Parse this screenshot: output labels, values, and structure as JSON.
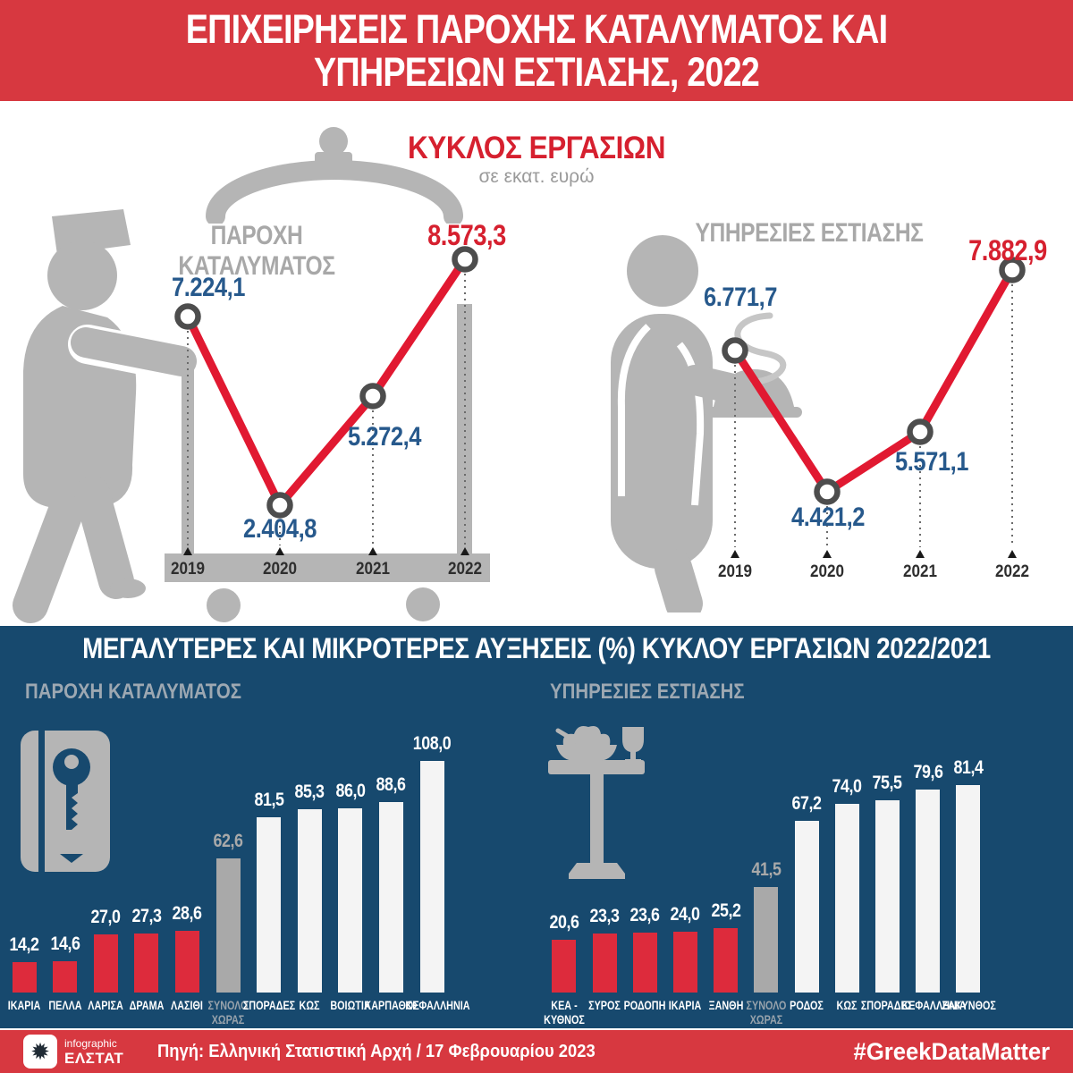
{
  "header": {
    "title_line1": "ΕΠΙΧΕΙΡΗΣΕΙΣ ΠΑΡΟΧΗΣ ΚΑΤΑΛΥΜΑΤΟΣ ΚΑΙ",
    "title_line2": "ΥΠΗΡΕΣΙΩΝ ΕΣΤΙΑΣΗΣ, 2022"
  },
  "turnover": {
    "title": "ΚΥΚΛΟΣ ΕΡΓΑΣΙΩΝ",
    "subtitle": "σε εκατ. ευρώ"
  },
  "increases": {
    "title": "ΜΕΓΑΛΥΤΕΡΕΣ ΚΑΙ ΜΙΚΡΟΤΕΡΕΣ ΑΥΞΗΣΕΙΣ (%) ΚΥΚΛΟΥ ΕΡΓΑΣΙΩΝ 2022/2021"
  },
  "footer": {
    "logo_top": "infographic",
    "logo_name": "ΕΛΣΤΑΤ",
    "source": "Πηγή: Ελληνική Στατιστική Αρχή  / 17 Φεβρουαρίου 2023",
    "hashtag": "#GreekDataMatter"
  },
  "icons": {
    "elstat_star_glyph": "✹"
  },
  "colors": {
    "banner_red": "#d73840",
    "chart_red": "#e11931",
    "bar_red": "#dd2b3c",
    "navy": "#17496e",
    "silhouette_gray": "#b5b5b5",
    "value_blue": "#27598c",
    "heading_gray": "#a8a8a8",
    "bar_white": "#f4f4f4",
    "bar_gray": "#a9a9a9"
  },
  "chart_data": [
    {
      "type": "line",
      "title": "ΠΑΡΟΧΗ ΚΑΤΑΛΥΜΑΤΟΣ",
      "unit": "σε εκατ. ευρώ",
      "x": [
        "2019",
        "2020",
        "2021",
        "2022"
      ],
      "values": [
        7224.1,
        2404.8,
        5272.4,
        8573.3
      ],
      "value_labels": [
        "7.224,1",
        "2.404,8",
        "5.272,4",
        "8.573,3"
      ],
      "highlight_index": 3,
      "grid": false,
      "legend": false
    },
    {
      "type": "line",
      "title": "ΥΠΗΡΕΣΙΕΣ ΕΣΤΙΑΣΗΣ",
      "unit": "σε εκατ. ευρώ",
      "x": [
        "2019",
        "2020",
        "2021",
        "2022"
      ],
      "values": [
        6771.7,
        4421.2,
        5571.1,
        7882.9
      ],
      "value_labels": [
        "6.771,7",
        "4.421,2",
        "5.571,1",
        "7.882,9"
      ],
      "highlight_index": 3,
      "grid": false,
      "legend": false
    },
    {
      "type": "bar",
      "title": "ΠΑΡΟΧΗ ΚΑΤΑΛΥΜΑΤΟΣ",
      "unit": "%",
      "categories": [
        "ΙΚΑΡΙΑ",
        "ΠΕΛΛΑ",
        "ΛΑΡΙΣΑ",
        "ΔΡΑΜΑ",
        "ΛΑΣΙΘΙ",
        "ΣΥΝΟΛΟ ΧΩΡΑΣ",
        "ΣΠΟΡΑΔΕΣ",
        "ΚΩΣ",
        "ΒΟΙΩΤΙΑ",
        "ΚΑΡΠΑΘΟΣ",
        "ΚΕΦΑΛΛΗΝΙΑ"
      ],
      "display_categories": [
        "ΙΚΑΡΙΑ",
        "ΠΕΛΛΑ",
        "ΛΑΡΙΣΑ",
        "ΔΡΑΜΑ",
        "ΛΑΣΙΘΙ",
        "ΣΥΝΟΛΟ\nΧΩΡΑΣ",
        "ΣΠΟΡΑΔΕΣ",
        "ΚΩΣ",
        "ΒΟΙΩΤΙΑ",
        "ΚΑΡΠΑΘΟΣ",
        "ΚΕΦΑΛΛΗΝΙΑ"
      ],
      "values": [
        14.2,
        14.6,
        27.0,
        27.3,
        28.6,
        62.6,
        81.5,
        85.3,
        86.0,
        88.6,
        108.0
      ],
      "value_labels": [
        "14,2",
        "14,6",
        "27,0",
        "27,3",
        "28,6",
        "62,6",
        "81,5",
        "85,3",
        "86,0",
        "88,6",
        "108,0"
      ],
      "bar_colors": [
        "red",
        "red",
        "red",
        "red",
        "red",
        "gray",
        "white",
        "white",
        "white",
        "white",
        "white"
      ],
      "ylim": [
        0,
        110
      ],
      "grid": false
    },
    {
      "type": "bar",
      "title": "ΥΠΗΡΕΣΙΕΣ ΕΣΤΙΑΣΗΣ",
      "unit": "%",
      "categories": [
        "ΚΕΑ - ΚΥΘΝΟΣ",
        "ΣΥΡΟΣ",
        "ΡΟΔΟΠΗ",
        "ΙΚΑΡΙΑ",
        "ΞΑΝΘΗ",
        "ΣΥΝΟΛΟ ΧΩΡΑΣ",
        "ΡΟΔΟΣ",
        "ΚΩΣ",
        "ΣΠΟΡΑΔΕΣ",
        "ΚΕΦΑΛΛΗΝΙΑ",
        "ΖΑΚΥΝΘΟΣ"
      ],
      "display_categories": [
        "ΚΕΑ -\nΚΥΘΝΟΣ",
        "ΣΥΡΟΣ",
        "ΡΟΔΟΠΗ",
        "ΙΚΑΡΙΑ",
        "ΞΑΝΘΗ",
        "ΣΥΝΟΛΟ\nΧΩΡΑΣ",
        "ΡΟΔΟΣ",
        "ΚΩΣ",
        "ΣΠΟΡΑΔΕΣ",
        "ΚΕΦΑΛΛΗΝΙΑ",
        "ΖΑΚΥΝΘΟΣ"
      ],
      "values": [
        20.6,
        23.3,
        23.6,
        24.0,
        25.2,
        41.5,
        67.2,
        74.0,
        75.5,
        79.6,
        81.4
      ],
      "value_labels": [
        "20,6",
        "23,3",
        "23,6",
        "24,0",
        "25,2",
        "41,5",
        "67,2",
        "74,0",
        "75,5",
        "79,6",
        "81,4"
      ],
      "bar_colors": [
        "red",
        "red",
        "red",
        "red",
        "red",
        "gray",
        "white",
        "white",
        "white",
        "white",
        "white"
      ],
      "ylim": [
        0,
        85
      ],
      "grid": false
    }
  ]
}
